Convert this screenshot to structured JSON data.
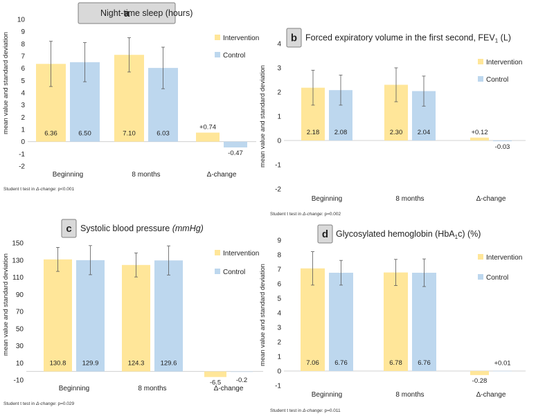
{
  "chart_data": [
    {
      "type": "bar",
      "panel": "a",
      "title": "Night-time sleep (hours)",
      "title_sub": "",
      "title_suffix": "",
      "title_italic": "",
      "ylabel": "mean value and standard deviation",
      "ylim": [
        -2,
        10
      ],
      "yticks": [
        -2,
        -1,
        0,
        1,
        2,
        3,
        4,
        5,
        6,
        7,
        8,
        9,
        10
      ],
      "categories": [
        "Beginning",
        "8 months",
        "Δ-change"
      ],
      "legend": "right",
      "series": [
        {
          "name": "Intervention",
          "color": "#FFE699",
          "values": [
            6.36,
            7.1,
            0.74
          ],
          "sd": [
            1.85,
            1.4,
            null
          ],
          "labels": [
            "6.36",
            "7.10",
            "+0.74"
          ]
        },
        {
          "name": "Control",
          "color": "#BDD7EE",
          "values": [
            6.5,
            6.03,
            -0.47
          ],
          "sd": [
            1.6,
            1.7,
            null
          ],
          "labels": [
            "6.50",
            "6.03",
            "-0.47"
          ]
        }
      ],
      "footnote": "Student t test in Δ-change: p<0.001"
    },
    {
      "type": "bar",
      "panel": "b",
      "title": "Forced expiratory volume in the first second, FEV",
      "title_sub": "1",
      "title_suffix": " (L)",
      "title_italic": "",
      "ylabel": "mean value and standard deviation",
      "ylim": [
        -2,
        4
      ],
      "yticks": [
        -2,
        -1,
        0,
        1,
        2,
        3,
        4
      ],
      "categories": [
        "Beginning",
        "8 months",
        "Δ-change"
      ],
      "legend": "right",
      "series": [
        {
          "name": "Intervention",
          "color": "#FFE699",
          "values": [
            2.18,
            2.3,
            0.12
          ],
          "sd": [
            0.72,
            0.7,
            null
          ],
          "labels": [
            "2.18",
            "2.30",
            "+0.12"
          ]
        },
        {
          "name": "Control",
          "color": "#BDD7EE",
          "values": [
            2.08,
            2.04,
            -0.03
          ],
          "sd": [
            0.62,
            0.62,
            null
          ],
          "labels": [
            "2.08",
            "2.04",
            "-0.03"
          ]
        }
      ],
      "footnote": "Student t test in Δ-change: p=0.002"
    },
    {
      "type": "bar",
      "panel": "c",
      "title": "Systolic blood pressure ",
      "title_sub": "",
      "title_suffix": "",
      "title_italic": "(mmHg)",
      "ylabel": "mean value and standard deviation",
      "ylim": [
        -10,
        150
      ],
      "yticks": [
        -10,
        10,
        30,
        50,
        70,
        90,
        110,
        130,
        150
      ],
      "categories": [
        "Beginning",
        "8 months",
        "Δ-change"
      ],
      "legend": "right",
      "series": [
        {
          "name": "Intervention",
          "color": "#FFE699",
          "values": [
            130.8,
            124.3,
            -6.5
          ],
          "sd": [
            14,
            14,
            null
          ],
          "labels": [
            "130.8",
            "124.3",
            "-6.5"
          ]
        },
        {
          "name": "Control",
          "color": "#BDD7EE",
          "values": [
            129.9,
            129.6,
            -0.2
          ],
          "sd": [
            17,
            17,
            null
          ],
          "labels": [
            "129.9",
            "129.6",
            "-0.2"
          ]
        }
      ],
      "footnote": "Student t test in Δ-change: p=0.029"
    },
    {
      "type": "bar",
      "panel": "d",
      "title": "Glycosylated hemoglobin (HbA",
      "title_sub": "1",
      "title_suffix": "c) (%)",
      "title_italic": "",
      "ylabel": "mean value and standard deviation",
      "ylim": [
        -1,
        9
      ],
      "yticks": [
        -1,
        0,
        1,
        2,
        3,
        4,
        5,
        6,
        7,
        8,
        9
      ],
      "categories": [
        "Beginning",
        "8 months",
        "Δ-change"
      ],
      "legend": "right",
      "series": [
        {
          "name": "Intervention",
          "color": "#FFE699",
          "values": [
            7.06,
            6.78,
            -0.28
          ],
          "sd": [
            1.15,
            0.9,
            null
          ],
          "labels": [
            "7.06",
            "6.78",
            "-0.28"
          ]
        },
        {
          "name": "Control",
          "color": "#BDD7EE",
          "values": [
            6.76,
            6.76,
            0.01
          ],
          "sd": [
            0.85,
            0.95,
            null
          ],
          "labels": [
            "6.76",
            "6.76",
            "+0.01"
          ]
        }
      ],
      "footnote": "Student t test in Δ-change: p=0.011"
    }
  ]
}
